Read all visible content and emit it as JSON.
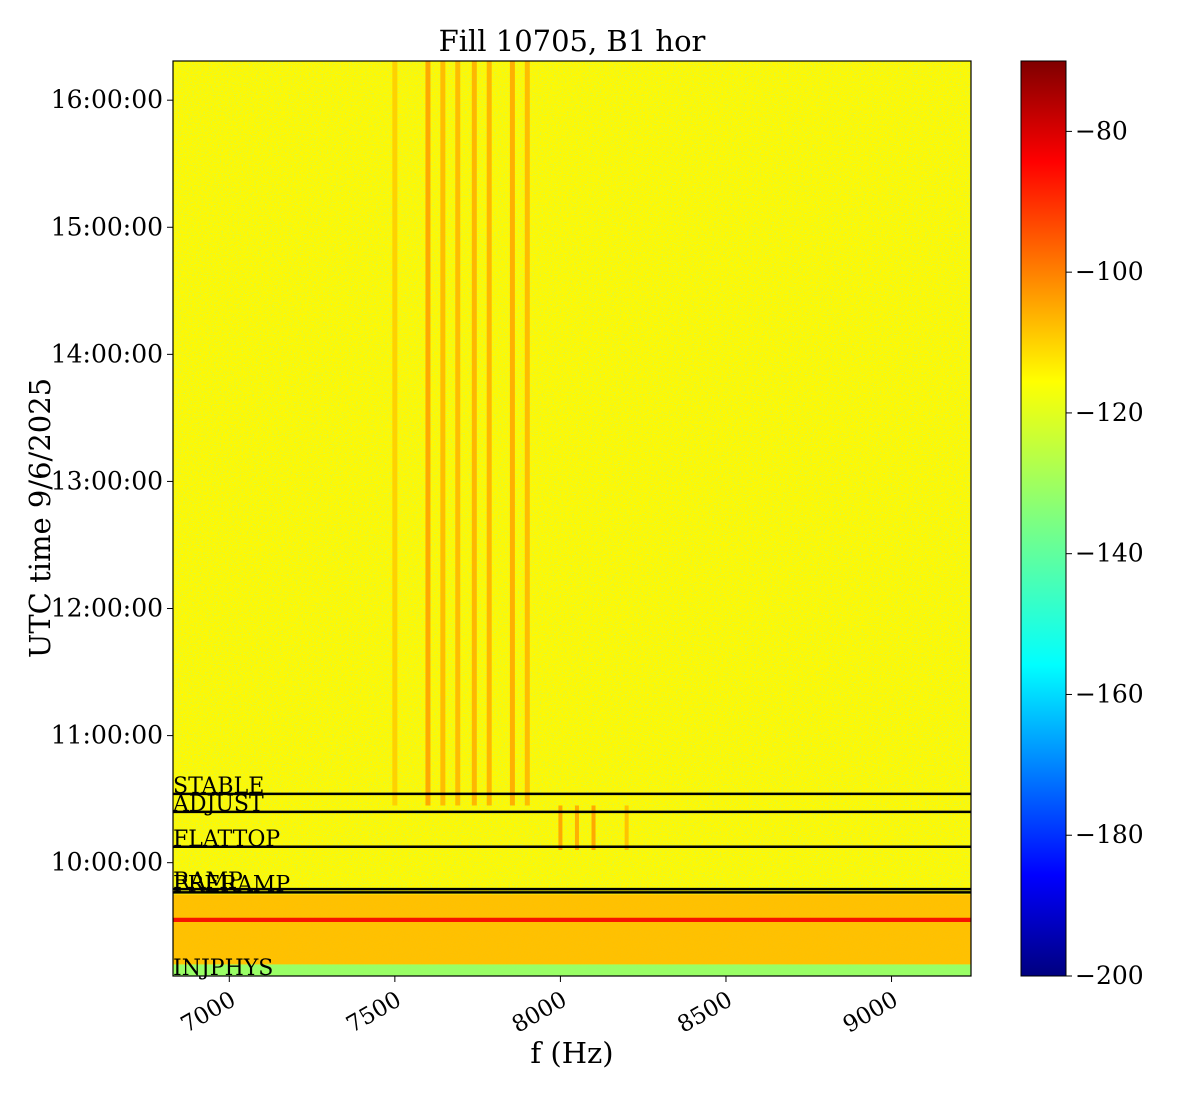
{
  "chart_data": {
    "type": "heatmap",
    "title": "Fill 10705, B1 hor",
    "xlabel": "f (Hz)",
    "ylabel": "UTC time 9/6/2025",
    "xlim": [
      6830,
      9240
    ],
    "ylim": [
      "09:06:30",
      "16:18:30"
    ],
    "x_ticks": [
      {
        "value": 7000,
        "label": "7000"
      },
      {
        "value": 7500,
        "label": "7500"
      },
      {
        "value": 8000,
        "label": "8000"
      },
      {
        "value": 8500,
        "label": "8500"
      },
      {
        "value": 9000,
        "label": "9000"
      }
    ],
    "y_ticks": [
      {
        "value": "10:00:00",
        "label": "10:00:00"
      },
      {
        "value": "11:00:00",
        "label": "11:00:00"
      },
      {
        "value": "12:00:00",
        "label": "12:00:00"
      },
      {
        "value": "13:00:00",
        "label": "13:00:00"
      },
      {
        "value": "14:00:00",
        "label": "14:00:00"
      },
      {
        "value": "15:00:00",
        "label": "15:00:00"
      },
      {
        "value": "16:00:00",
        "label": "16:00:00"
      }
    ],
    "colormap": "jet",
    "colorbar": {
      "range": [
        -200,
        -70
      ],
      "ticks": [
        {
          "value": -80,
          "label": "−80"
        },
        {
          "value": -100,
          "label": "−100"
        },
        {
          "value": -120,
          "label": "−120"
        },
        {
          "value": -140,
          "label": "−140"
        },
        {
          "value": -160,
          "label": "−160"
        },
        {
          "value": -180,
          "label": "−180"
        },
        {
          "value": -200,
          "label": "−200"
        }
      ]
    },
    "background_level": -118,
    "lines": [
      {
        "x": 7600,
        "start": "10:27:00",
        "level": -106
      },
      {
        "x": 7645,
        "start": "10:27:00",
        "level": -109
      },
      {
        "x": 7690,
        "start": "10:27:00",
        "level": -109
      },
      {
        "x": 7740,
        "start": "10:27:00",
        "level": -108
      },
      {
        "x": 7785,
        "start": "10:27:00",
        "level": -108
      },
      {
        "x": 7855,
        "start": "10:27:00",
        "level": -107
      },
      {
        "x": 7900,
        "start": "10:27:00",
        "level": -109
      },
      {
        "x": 7500,
        "start": "10:27:00",
        "level": -112
      }
    ],
    "flattop_lines": [
      {
        "x": 8000,
        "start": "10:06:00",
        "end": "10:27:00",
        "level": -106
      },
      {
        "x": 8050,
        "start": "10:06:00",
        "end": "10:27:00",
        "level": -107
      },
      {
        "x": 8100,
        "start": "10:06:00",
        "end": "10:27:00",
        "level": -106
      },
      {
        "x": 8200,
        "start": "10:06:00",
        "end": "10:27:00",
        "level": -110
      }
    ],
    "bands": [
      {
        "start": "09:06:30",
        "end": "09:12:00",
        "level": -133
      },
      {
        "start": "09:12:00",
        "end": "09:45:00",
        "level": -110
      },
      {
        "start": "09:32:00",
        "end": "09:34:00",
        "level": -85
      }
    ],
    "annotations": [
      {
        "label": "STABLE",
        "time": "10:32:30"
      },
      {
        "label": "ADJUST",
        "time": "10:24:00"
      },
      {
        "label": "FLATTOP",
        "time": "10:07:30"
      },
      {
        "label": "RAMP",
        "time": "09:47:30"
      },
      {
        "label": "PRERAMP",
        "time": "09:46:00"
      },
      {
        "label": "INJPHYS",
        "time": "09:06:30"
      }
    ]
  }
}
